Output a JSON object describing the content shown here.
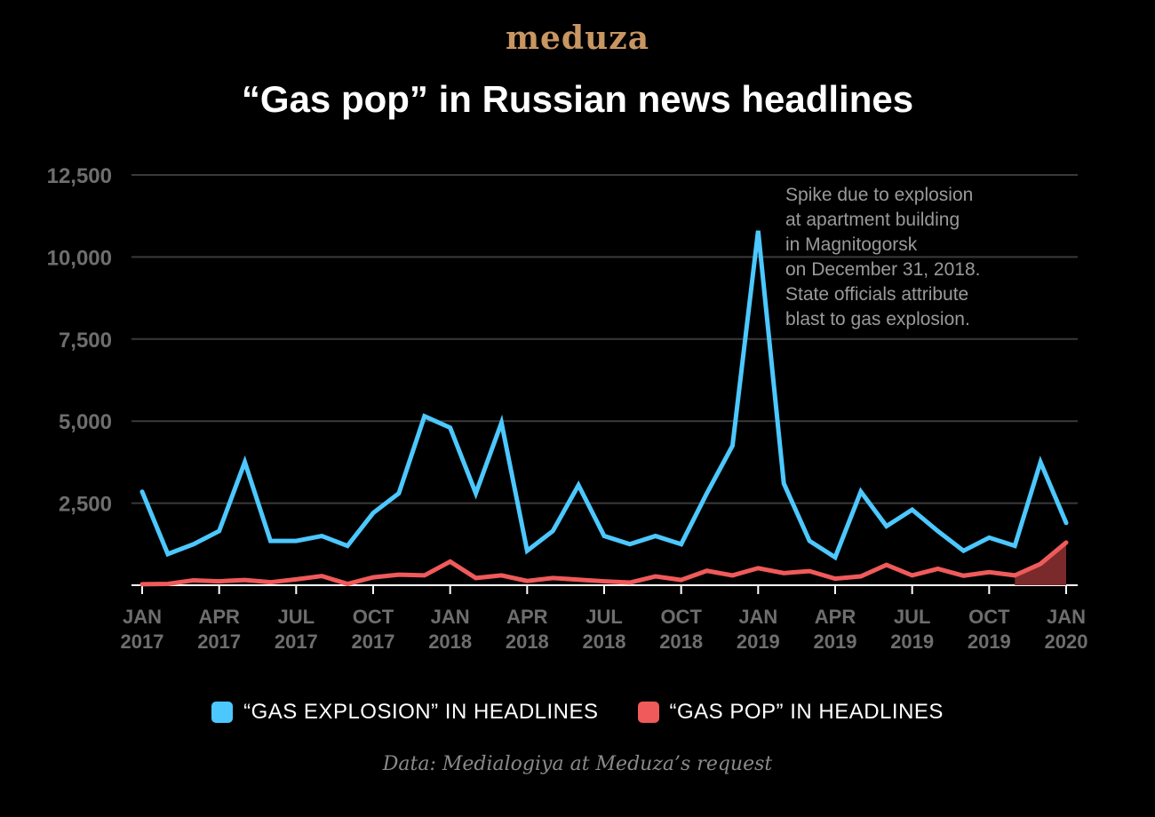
{
  "brand": "meduza",
  "source": "Data: Medialogiya at Meduza’s request",
  "colors": {
    "explosion": "#4cc8ff",
    "pop": "#f05a5a",
    "pop_fill": "#7a2a2a",
    "grid": "#3a3a3a",
    "axis_text": "#6e6e6e",
    "annotation": "#9a9a9a"
  },
  "chart_data": {
    "type": "line",
    "title": "“Gas pop” in Russian news headlines",
    "ylim": [
      0,
      12500
    ],
    "yticks": [
      2500,
      5000,
      7500,
      10000,
      12500
    ],
    "ytick_labels": [
      "2,500",
      "5,000",
      "7,500",
      "10,000",
      "12,500"
    ],
    "x": [
      "2017-01",
      "2017-02",
      "2017-03",
      "2017-04",
      "2017-05",
      "2017-06",
      "2017-07",
      "2017-08",
      "2017-09",
      "2017-10",
      "2017-11",
      "2017-12",
      "2018-01",
      "2018-02",
      "2018-03",
      "2018-04",
      "2018-05",
      "2018-06",
      "2018-07",
      "2018-08",
      "2018-09",
      "2018-10",
      "2018-11",
      "2018-12",
      "2019-01",
      "2019-02",
      "2019-03",
      "2019-04",
      "2019-05",
      "2019-06",
      "2019-07",
      "2019-08",
      "2019-09",
      "2019-10",
      "2019-11",
      "2019-12",
      "2020-01"
    ],
    "xtick_labels": [
      {
        "x": "2017-01",
        "month": "JAN",
        "year": "2017"
      },
      {
        "x": "2017-04",
        "month": "APR",
        "year": "2017"
      },
      {
        "x": "2017-07",
        "month": "JUL",
        "year": "2017"
      },
      {
        "x": "2017-10",
        "month": "OCT",
        "year": "2017"
      },
      {
        "x": "2018-01",
        "month": "JAN",
        "year": "2018"
      },
      {
        "x": "2018-04",
        "month": "APR",
        "year": "2018"
      },
      {
        "x": "2018-07",
        "month": "JUL",
        "year": "2018"
      },
      {
        "x": "2018-10",
        "month": "OCT",
        "year": "2018"
      },
      {
        "x": "2019-01",
        "month": "JAN",
        "year": "2019"
      },
      {
        "x": "2019-04",
        "month": "APR",
        "year": "2019"
      },
      {
        "x": "2019-07",
        "month": "JUL",
        "year": "2019"
      },
      {
        "x": "2019-10",
        "month": "OCT",
        "year": "2019"
      },
      {
        "x": "2020-01",
        "month": "JAN",
        "year": "2020"
      }
    ],
    "series": [
      {
        "name": "“GAS EXPLOSION” IN HEADLINES",
        "values": [
          2850,
          950,
          1250,
          1650,
          3750,
          1350,
          1350,
          1500,
          1200,
          2200,
          2800,
          5150,
          4800,
          2800,
          4950,
          1050,
          1650,
          3050,
          1500,
          1250,
          1500,
          1250,
          2800,
          4250,
          10800,
          3100,
          1350,
          850,
          2850,
          1800,
          2300,
          1650,
          1050,
          1450,
          1200,
          3750,
          1900
        ]
      },
      {
        "name": "“GAS POP” IN HEADLINES",
        "values": [
          30,
          40,
          150,
          120,
          160,
          90,
          180,
          280,
          40,
          240,
          320,
          300,
          720,
          220,
          300,
          130,
          220,
          170,
          120,
          80,
          270,
          160,
          440,
          300,
          520,
          370,
          430,
          200,
          270,
          620,
          300,
          500,
          290,
          400,
          300,
          650,
          1300
        ]
      }
    ],
    "annotation": {
      "lines": [
        "Spike due to explosion",
        "at apartment building",
        "in Magnitogorsk",
        "on December 31, 2018.",
        "State officials attribute",
        "blast to gas explosion."
      ]
    },
    "grid": true,
    "legend": "bottom"
  }
}
